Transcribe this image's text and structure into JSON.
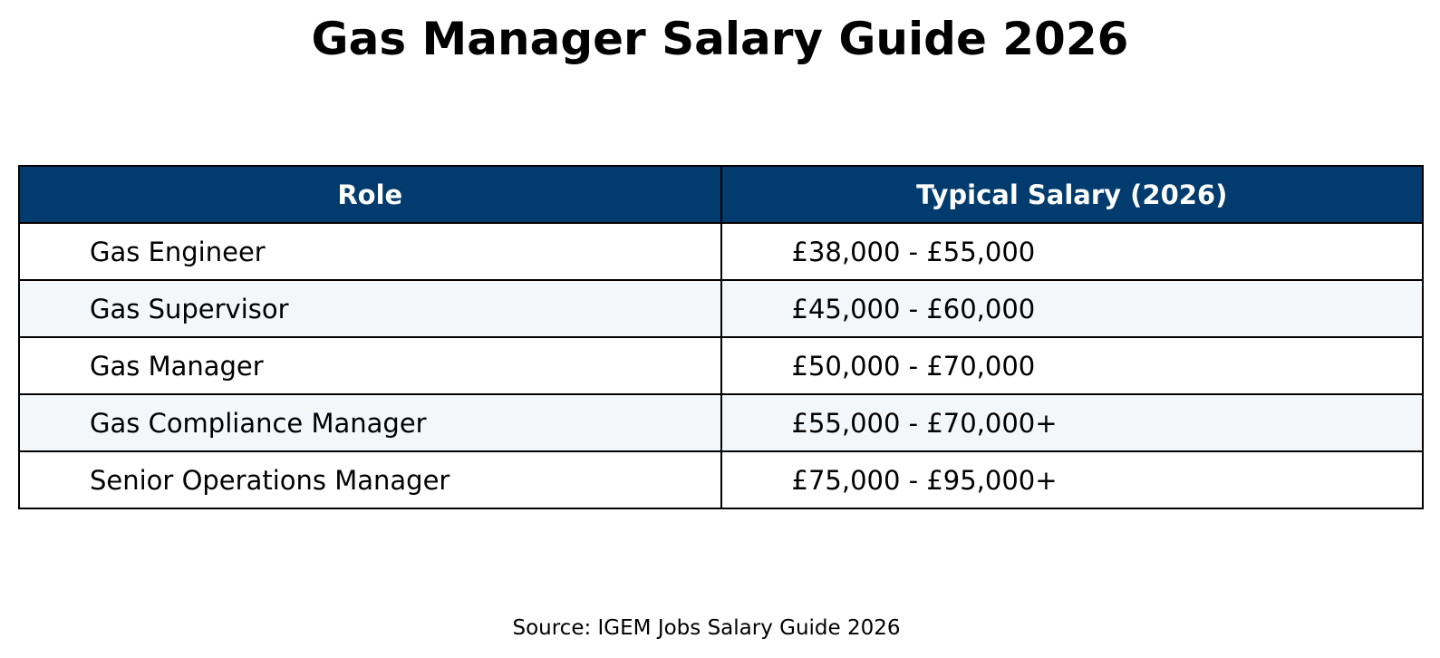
{
  "title": "Gas Manager Salary Guide 2026",
  "source": "Source: IGEM Jobs Salary Guide 2026",
  "colors": {
    "header_bg": "#023b6e",
    "header_text": "#ffffff",
    "row_odd": "#ffffff",
    "row_even": "#f3f7fa",
    "border": "#000000"
  },
  "chart_data": {
    "type": "table",
    "title": "Gas Manager Salary Guide 2026",
    "columns": [
      "Role",
      "Typical Salary (2026)"
    ],
    "rows": [
      [
        "Gas Engineer",
        "£38,000 - £55,000"
      ],
      [
        "Gas Supervisor",
        "£45,000 - £60,000"
      ],
      [
        "Gas Manager",
        "£50,000 - £70,000"
      ],
      [
        "Gas Compliance Manager",
        "£55,000 - £70,000+"
      ],
      [
        "Senior Operations Manager",
        "£75,000 - £95,000+"
      ]
    ],
    "source": "Source: IGEM Jobs Salary Guide 2026"
  }
}
